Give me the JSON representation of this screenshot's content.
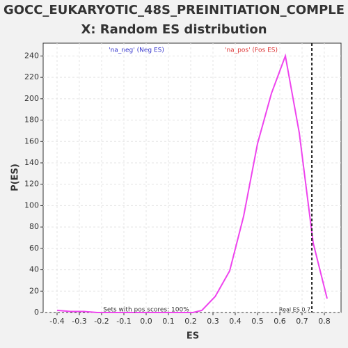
{
  "chart_data": {
    "type": "line",
    "title": [
      "GOCC_EUKARYOTIC_48S_PREINITIATION_COMPLE",
      "X: Random ES distribution"
    ],
    "x_label": "ES",
    "y_label": "P(ES)",
    "x": [
      -0.4,
      -0.34,
      -0.28,
      -0.22,
      -0.16,
      -0.1,
      -0.03,
      0.03,
      0.09,
      0.15,
      0.21,
      0.25,
      0.31,
      0.375,
      0.4375,
      0.5,
      0.5625,
      0.625,
      0.6875,
      0.75,
      0.8125
    ],
    "series": [
      {
        "color": "#ee44ee",
        "values": [
          2,
          1,
          1,
          0,
          0,
          0,
          0,
          0,
          0,
          0,
          0,
          2,
          15,
          39,
          90,
          158,
          205,
          240,
          168,
          65,
          13
        ]
      }
    ],
    "xlim": [
      -0.4625,
      0.875
    ],
    "ylim": [
      0,
      252
    ],
    "xticks": [
      -0.4,
      -0.3,
      -0.2,
      -0.1,
      {
        "value": 0,
        "label": "0.0"
      },
      0.1,
      0.2,
      0.3,
      0.4,
      0.5,
      0.6,
      0.7,
      0.8
    ],
    "yticks": [
      0,
      20,
      40,
      60,
      80,
      100,
      120,
      140,
      160,
      180,
      200,
      220,
      240
    ],
    "grid": true,
    "real_es": {
      "value": 0.744,
      "label": "Real ES 0.7"
    },
    "neg_label": "'na_neg' (Neg ES)",
    "pos_label": "'na_pos' (Pos ES)",
    "pos_scores_note": "Sets with pos scores: 100%"
  }
}
